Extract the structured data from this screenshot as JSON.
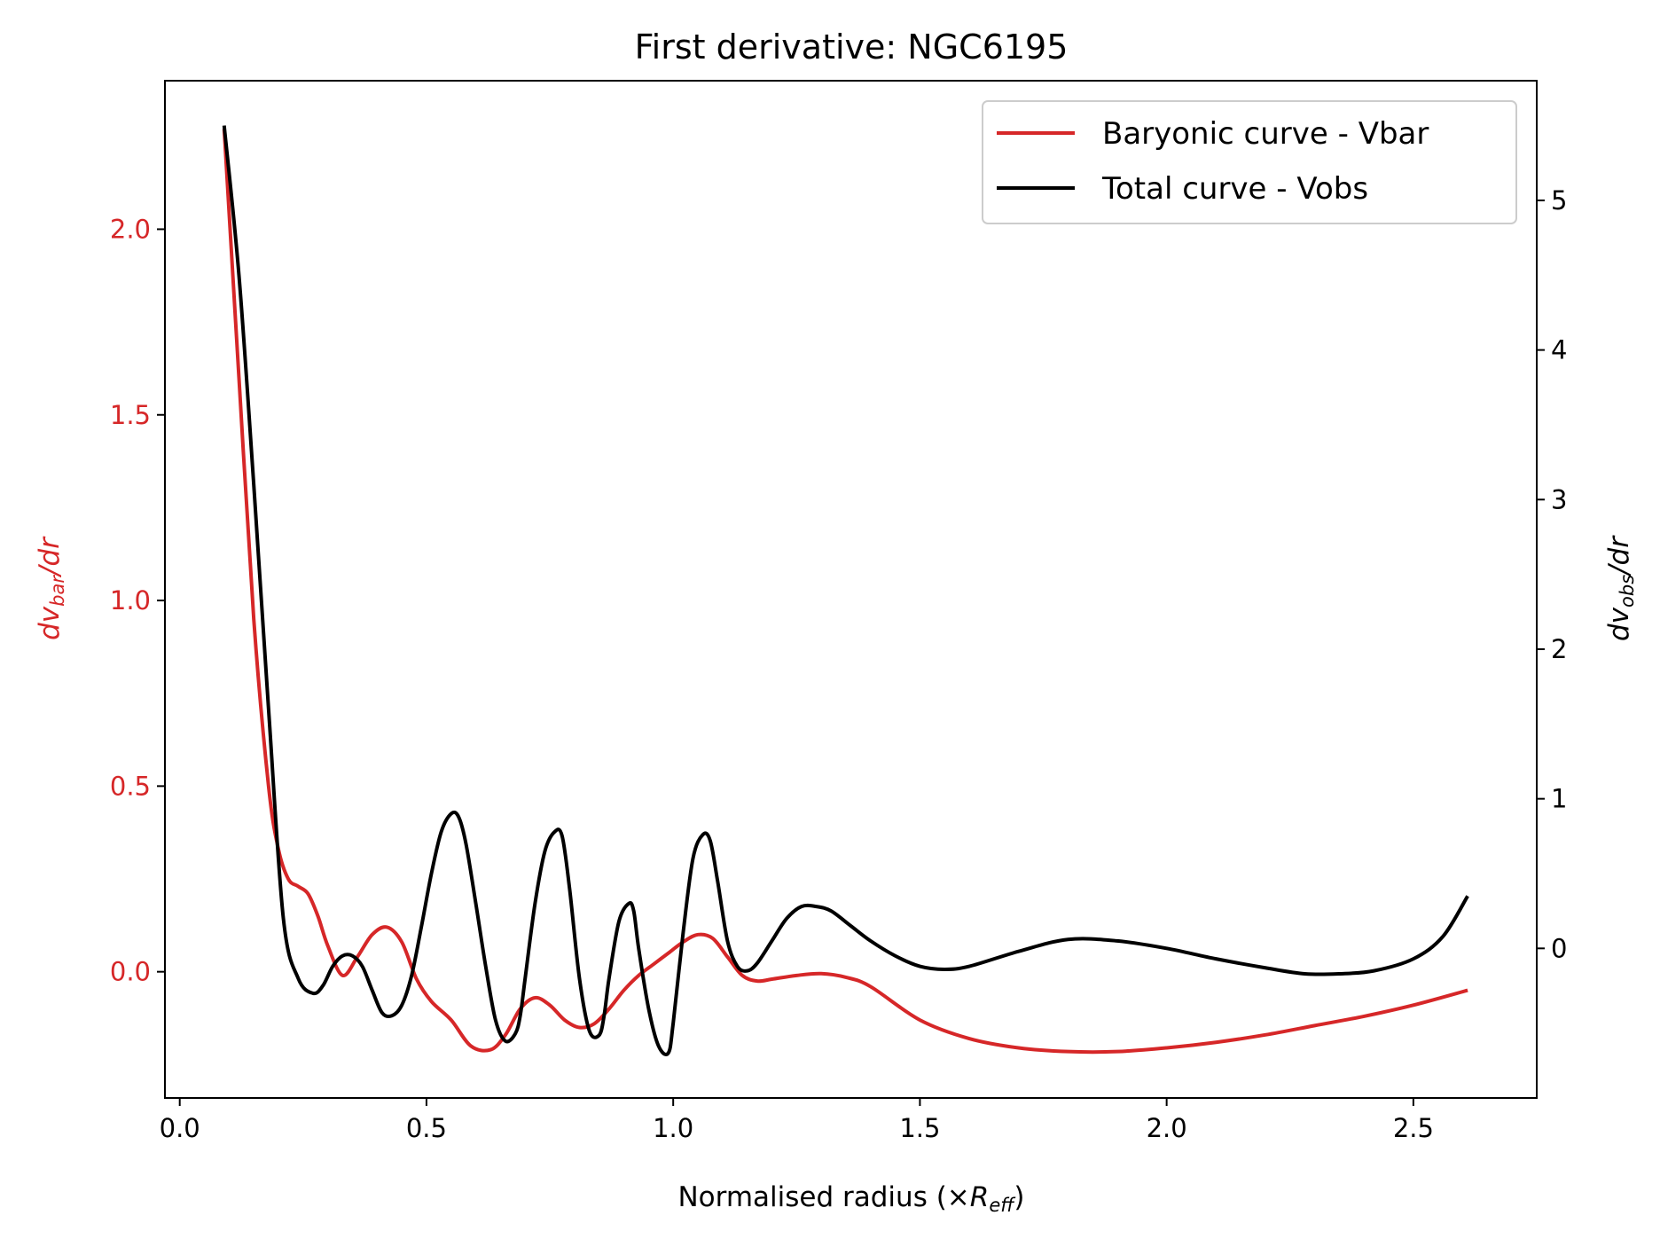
{
  "chart_data": {
    "type": "line",
    "title": "First derivative: NGC6195",
    "xlabel": {
      "prefix": "Normalised radius (×",
      "var": "R",
      "sub": "eff",
      "suffix": ")"
    },
    "ylabel_left": {
      "prefix": "dv",
      "sub": "bar",
      "suffix": "/dr"
    },
    "ylabel_right": {
      "prefix": "dv",
      "sub": "obs",
      "suffix": "/dr"
    },
    "xlim": [
      -0.03,
      2.75
    ],
    "ylim_left": [
      -0.34,
      2.4
    ],
    "ylim_right": [
      -1.0,
      5.8
    ],
    "x_ticks": [
      "0.0",
      "0.5",
      "1.0",
      "1.5",
      "2.0",
      "2.5"
    ],
    "y_left_ticks": [
      "0.0",
      "0.5",
      "1.0",
      "1.5",
      "2.0"
    ],
    "y_right_ticks": [
      "0",
      "1",
      "2",
      "3",
      "4",
      "5"
    ],
    "grid": false,
    "legend_position": "top-right",
    "colors": {
      "vbar": "#d62728",
      "vobs": "#000000"
    },
    "series": [
      {
        "name": "Baryonic curve - Vbar",
        "axis": "left",
        "color": "#d62728",
        "x": [
          0.09,
          0.12,
          0.15,
          0.18,
          0.2,
          0.22,
          0.24,
          0.26,
          0.28,
          0.3,
          0.33,
          0.36,
          0.39,
          0.42,
          0.45,
          0.48,
          0.51,
          0.55,
          0.59,
          0.63,
          0.66,
          0.69,
          0.72,
          0.75,
          0.78,
          0.81,
          0.84,
          0.87,
          0.9,
          0.93,
          0.96,
          0.99,
          1.02,
          1.05,
          1.08,
          1.11,
          1.14,
          1.17,
          1.2,
          1.25,
          1.3,
          1.35,
          1.4,
          1.5,
          1.6,
          1.7,
          1.8,
          1.9,
          2.0,
          2.1,
          2.2,
          2.3,
          2.4,
          2.5,
          2.61
        ],
        "y": [
          2.27,
          1.6,
          0.95,
          0.5,
          0.33,
          0.25,
          0.23,
          0.21,
          0.15,
          0.07,
          -0.01,
          0.04,
          0.1,
          0.12,
          0.08,
          -0.02,
          -0.08,
          -0.13,
          -0.2,
          -0.21,
          -0.17,
          -0.1,
          -0.07,
          -0.09,
          -0.13,
          -0.15,
          -0.14,
          -0.1,
          -0.05,
          -0.01,
          0.02,
          0.05,
          0.08,
          0.1,
          0.09,
          0.04,
          -0.01,
          -0.025,
          -0.02,
          -0.01,
          -0.005,
          -0.015,
          -0.04,
          -0.13,
          -0.18,
          -0.205,
          -0.215,
          -0.215,
          -0.205,
          -0.19,
          -0.17,
          -0.145,
          -0.12,
          -0.09,
          -0.05
        ]
      },
      {
        "name": "Total curve - Vobs",
        "axis": "right",
        "color": "#000000",
        "x": [
          0.09,
          0.12,
          0.15,
          0.18,
          0.21,
          0.24,
          0.27,
          0.29,
          0.31,
          0.33,
          0.35,
          0.37,
          0.39,
          0.41,
          0.43,
          0.45,
          0.47,
          0.49,
          0.51,
          0.53,
          0.55,
          0.565,
          0.58,
          0.6,
          0.62,
          0.64,
          0.66,
          0.68,
          0.69,
          0.7,
          0.72,
          0.74,
          0.76,
          0.775,
          0.79,
          0.81,
          0.83,
          0.85,
          0.86,
          0.87,
          0.89,
          0.91,
          0.92,
          0.93,
          0.95,
          0.97,
          0.99,
          1.0,
          1.02,
          1.04,
          1.06,
          1.075,
          1.09,
          1.11,
          1.13,
          1.15,
          1.17,
          1.2,
          1.23,
          1.26,
          1.29,
          1.32,
          1.36,
          1.4,
          1.45,
          1.5,
          1.55,
          1.6,
          1.7,
          1.8,
          1.9,
          2.0,
          2.1,
          2.2,
          2.28,
          2.35,
          2.42,
          2.5,
          2.56,
          2.61
        ],
        "y": [
          5.5,
          4.5,
          3.1,
          1.6,
          0.2,
          -0.2,
          -0.3,
          -0.25,
          -0.12,
          -0.05,
          -0.05,
          -0.12,
          -0.28,
          -0.43,
          -0.45,
          -0.38,
          -0.18,
          0.15,
          0.5,
          0.78,
          0.9,
          0.88,
          0.7,
          0.3,
          -0.12,
          -0.48,
          -0.62,
          -0.57,
          -0.45,
          -0.2,
          0.3,
          0.65,
          0.78,
          0.75,
          0.4,
          -0.2,
          -0.55,
          -0.58,
          -0.45,
          -0.2,
          0.18,
          0.3,
          0.25,
          0.0,
          -0.4,
          -0.65,
          -0.7,
          -0.5,
          0.1,
          0.6,
          0.76,
          0.72,
          0.45,
          0.05,
          -0.12,
          -0.15,
          -0.1,
          0.05,
          0.2,
          0.28,
          0.28,
          0.25,
          0.15,
          0.05,
          -0.05,
          -0.12,
          -0.14,
          -0.12,
          -0.02,
          0.06,
          0.05,
          0.0,
          -0.07,
          -0.13,
          -0.17,
          -0.17,
          -0.15,
          -0.07,
          0.08,
          0.35
        ]
      }
    ]
  }
}
